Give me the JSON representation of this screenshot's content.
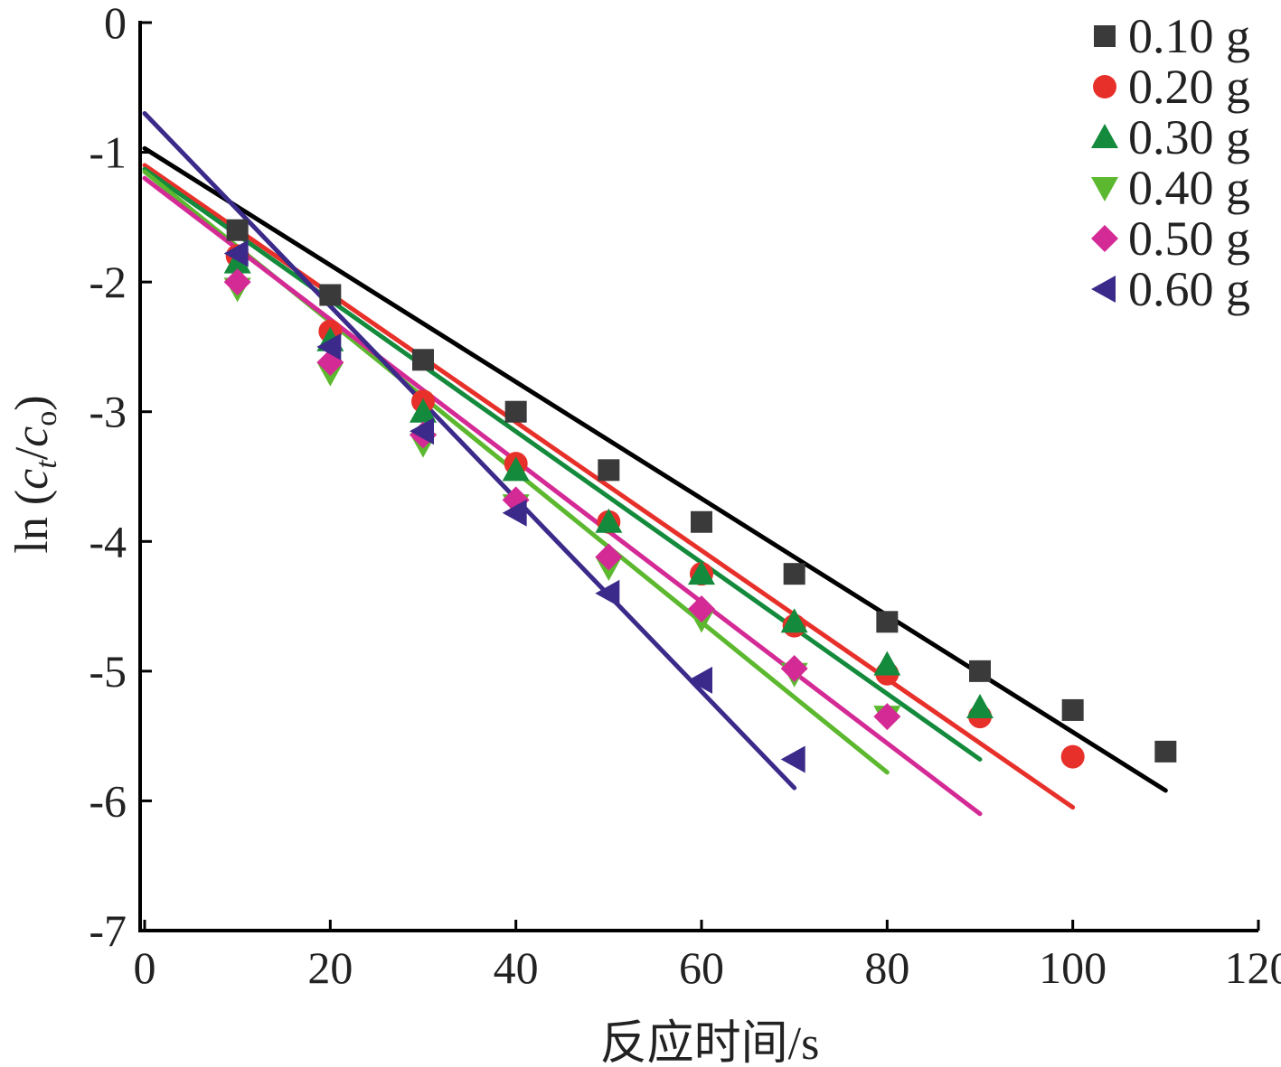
{
  "chart_data": {
    "type": "scatter",
    "title": "",
    "xlabel": "反应时间/s",
    "ylabel": {
      "prefix": "ln (",
      "c1": "c",
      "sub1": "t",
      "slash": "/",
      "c2": "c",
      "sub2": "o",
      "suffix": ")"
    },
    "xlim": [
      0,
      120
    ],
    "ylim": [
      -7,
      0
    ],
    "x_ticks": [
      0,
      20,
      40,
      60,
      80,
      100,
      120
    ],
    "y_ticks": [
      0,
      -1,
      -2,
      -3,
      -4,
      -5,
      -6,
      -7
    ],
    "x_tick_labels": [
      "0",
      "20",
      "40",
      "60",
      "80",
      "100",
      "120"
    ],
    "y_tick_labels": [
      "0",
      "-1",
      "-2",
      "-3",
      "-4",
      "-5",
      "-6",
      "-7"
    ],
    "legend_position": "top-right",
    "series": [
      {
        "name": "0.10 g",
        "color": "#3a3a3a",
        "line_color": "#000000",
        "marker": "square",
        "x": [
          10,
          20,
          30,
          40,
          50,
          60,
          70,
          80,
          90,
          100,
          110
        ],
        "y": [
          -1.6,
          -2.1,
          -2.6,
          -3.0,
          -3.45,
          -3.85,
          -4.25,
          -4.62,
          -5.0,
          -5.3,
          -5.62
        ],
        "fit": {
          "x": [
            0,
            110
          ],
          "y": [
            -0.97,
            -5.92
          ]
        }
      },
      {
        "name": "0.20 g",
        "color": "#e8302a",
        "line_color": "#e8302a",
        "marker": "circle",
        "x": [
          10,
          20,
          30,
          40,
          50,
          60,
          70,
          80,
          90,
          100
        ],
        "y": [
          -1.8,
          -2.38,
          -2.92,
          -3.4,
          -3.85,
          -4.25,
          -4.65,
          -5.02,
          -5.35,
          -5.66
        ],
        "fit": {
          "x": [
            0,
            100
          ],
          "y": [
            -1.1,
            -6.05
          ]
        }
      },
      {
        "name": "0.30 g",
        "color": "#148a3c",
        "line_color": "#148a3c",
        "marker": "triangle-up",
        "x": [
          10,
          20,
          30,
          40,
          50,
          60,
          70,
          80,
          90
        ],
        "y": [
          -1.85,
          -2.45,
          -3.0,
          -3.45,
          -3.85,
          -4.25,
          -4.62,
          -4.95,
          -5.28
        ],
        "fit": {
          "x": [
            0,
            90
          ],
          "y": [
            -1.13,
            -5.68
          ]
        }
      },
      {
        "name": "0.40 g",
        "color": "#5cb82e",
        "line_color": "#5cb82e",
        "marker": "triangle-down",
        "x": [
          10,
          20,
          30,
          40,
          50,
          60,
          70,
          80
        ],
        "y": [
          -2.05,
          -2.7,
          -3.25,
          -3.72,
          -4.2,
          -4.6,
          -5.02,
          -5.35
        ],
        "fit": {
          "x": [
            0,
            80
          ],
          "y": [
            -1.15,
            -5.78
          ]
        }
      },
      {
        "name": "0.50 g",
        "color": "#d42a95",
        "line_color": "#d42a95",
        "marker": "diamond",
        "x": [
          10,
          20,
          30,
          40,
          50,
          60,
          70,
          80
        ],
        "y": [
          -2.0,
          -2.62,
          -3.18,
          -3.68,
          -4.12,
          -4.52,
          -4.98,
          -5.35
        ],
        "fit": {
          "x": [
            0,
            90
          ],
          "y": [
            -1.2,
            -6.1
          ]
        }
      },
      {
        "name": "0.60 g",
        "color": "#3c2a8a",
        "line_color": "#3c2a8a",
        "marker": "triangle-left",
        "x": [
          10,
          20,
          30,
          40,
          50,
          60,
          70
        ],
        "y": [
          -1.78,
          -2.5,
          -3.15,
          -3.78,
          -4.4,
          -5.07,
          -5.68
        ],
        "fit": {
          "x": [
            0,
            70
          ],
          "y": [
            -0.7,
            -5.9
          ]
        }
      }
    ]
  }
}
